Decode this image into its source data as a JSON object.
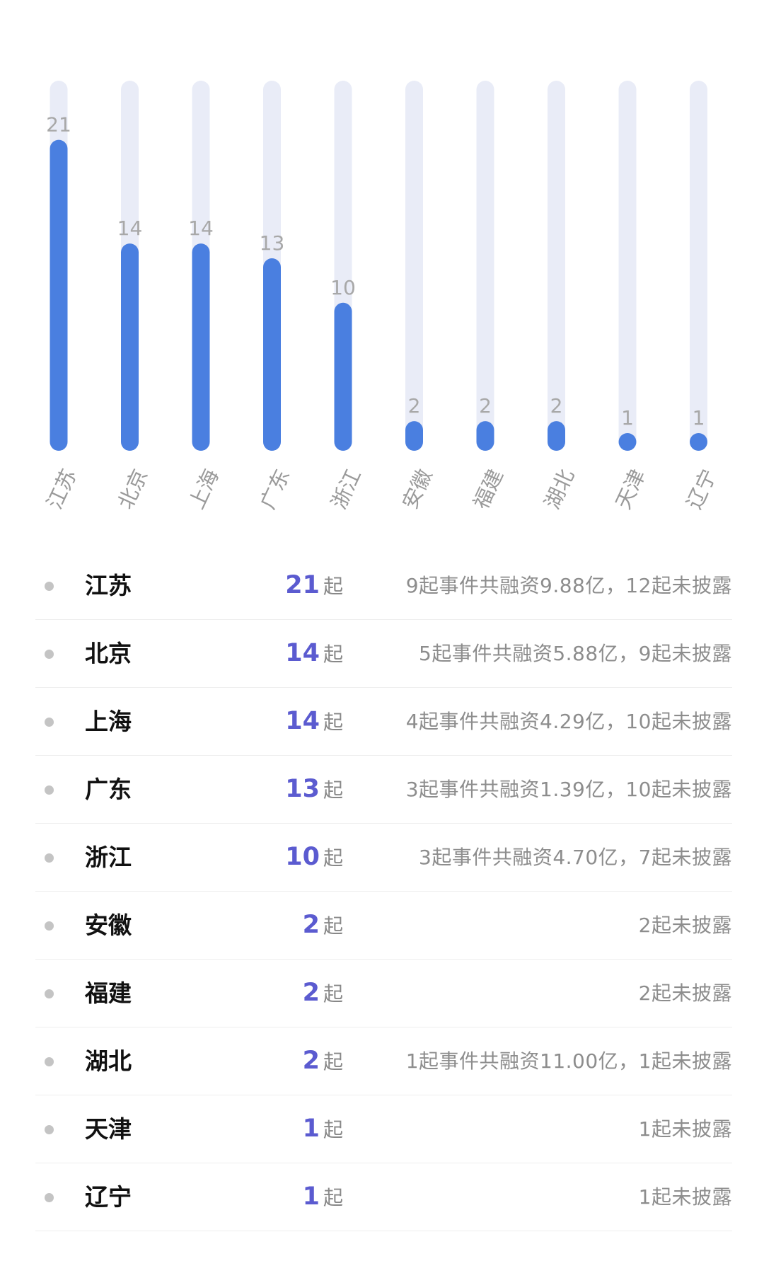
{
  "chart_data": {
    "type": "bar",
    "categories": [
      "江苏",
      "北京",
      "上海",
      "广东",
      "浙江",
      "安徽",
      "福建",
      "湖北",
      "天津",
      "辽宁"
    ],
    "values": [
      21,
      14,
      14,
      13,
      10,
      2,
      2,
      2,
      1,
      1
    ],
    "ylim": [
      0,
      25
    ],
    "grid": false,
    "colors": {
      "bar": "#4a7fe0",
      "track": "#e9ecf7",
      "value_label": "#a8a8a8",
      "category_label": "#9a9a9a"
    }
  },
  "table": {
    "unit": "起",
    "rows": [
      {
        "province": "江苏",
        "count": "21",
        "desc": "9起事件共融资9.88亿，12起未披露"
      },
      {
        "province": "北京",
        "count": "14",
        "desc": "5起事件共融资5.88亿，9起未披露"
      },
      {
        "province": "上海",
        "count": "14",
        "desc": "4起事件共融资4.29亿，10起未披露"
      },
      {
        "province": "广东",
        "count": "13",
        "desc": "3起事件共融资1.39亿，10起未披露"
      },
      {
        "province": "浙江",
        "count": "10",
        "desc": "3起事件共融资4.70亿，7起未披露"
      },
      {
        "province": "安徽",
        "count": "2",
        "desc": "2起未披露"
      },
      {
        "province": "福建",
        "count": "2",
        "desc": "2起未披露"
      },
      {
        "province": "湖北",
        "count": "2",
        "desc": "1起事件共融资11.00亿，1起未披露"
      },
      {
        "province": "天津",
        "count": "1",
        "desc": "1起未披露"
      },
      {
        "province": "辽宁",
        "count": "1",
        "desc": "1起未披露"
      }
    ],
    "colors": {
      "count": "#5b5bd0",
      "bullet": "#c4c4c4",
      "divider": "#eeeeee"
    }
  }
}
